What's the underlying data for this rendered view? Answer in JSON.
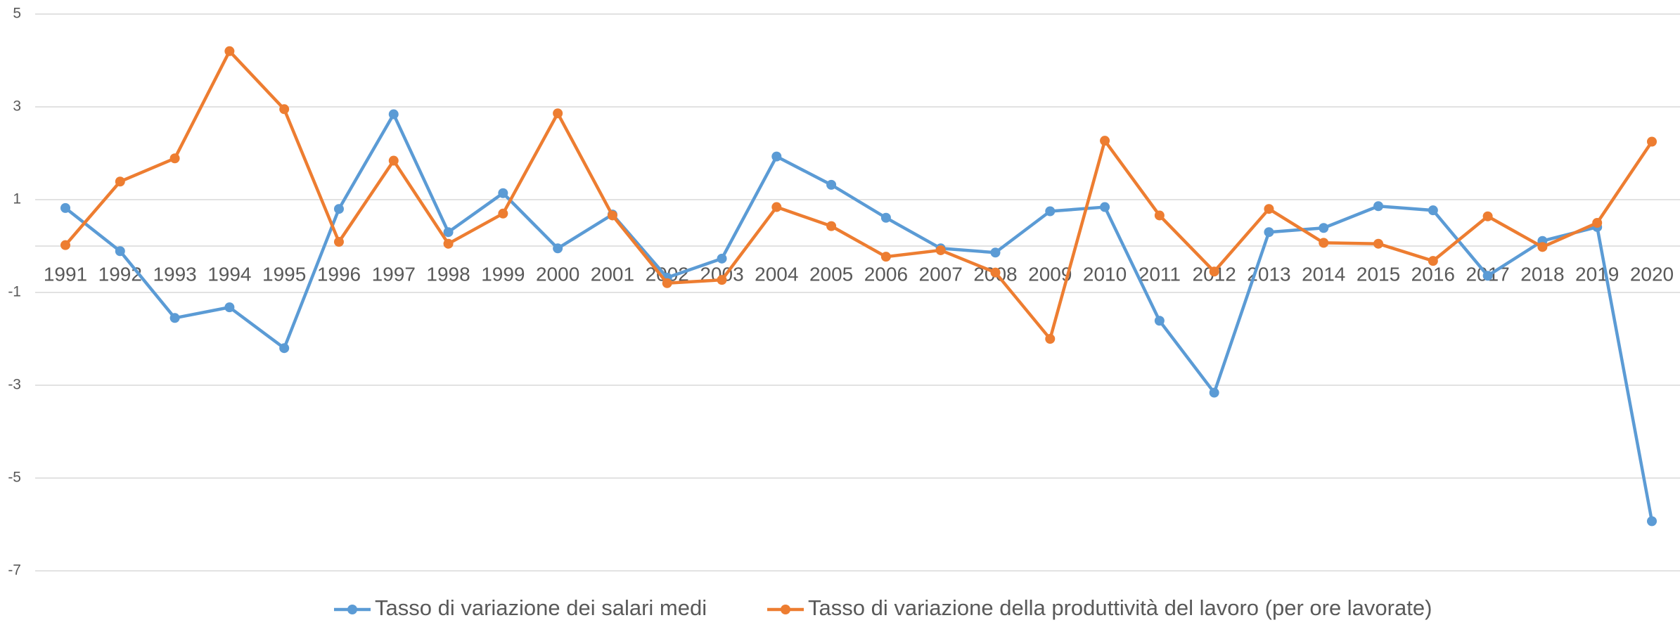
{
  "chart_data": {
    "type": "line",
    "categories": [
      "1991",
      "1992",
      "1993",
      "1994",
      "1995",
      "1996",
      "1997",
      "1998",
      "1999",
      "2000",
      "2001",
      "2002",
      "2003",
      "2004",
      "2005",
      "2006",
      "2007",
      "2008",
      "2009",
      "2010",
      "2011",
      "2012",
      "2013",
      "2014",
      "2015",
      "2016",
      "2017",
      "2018",
      "2019",
      "2020"
    ],
    "series": [
      {
        "name": "Tasso di variazione dei salari medi",
        "color": "#5b9bd5",
        "values": [
          0.82,
          -0.11,
          -1.55,
          -1.32,
          -2.2,
          0.8,
          2.84,
          0.3,
          1.14,
          -0.05,
          0.68,
          -0.68,
          -0.27,
          1.93,
          1.32,
          0.61,
          -0.05,
          -0.14,
          0.75,
          0.84,
          -1.61,
          -3.16,
          0.3,
          0.39,
          0.86,
          0.77,
          -0.64,
          0.11,
          0.41,
          -5.93
        ]
      },
      {
        "name": "Tasso di variazione della produttività del lavoro (per ore lavorate)",
        "color": "#ed7d31",
        "values": [
          0.02,
          1.39,
          1.89,
          4.2,
          2.95,
          0.09,
          1.84,
          0.05,
          0.7,
          2.86,
          0.66,
          -0.8,
          -0.73,
          0.84,
          0.43,
          -0.23,
          -0.09,
          -0.57,
          -2.0,
          2.27,
          0.66,
          -0.55,
          0.8,
          0.07,
          0.05,
          -0.32,
          0.64,
          -0.02,
          0.5,
          2.25
        ]
      }
    ],
    "ylim": [
      -7,
      5
    ],
    "yticks": [
      -7,
      -5,
      -3,
      -1,
      1,
      3,
      5
    ],
    "grid": true,
    "legend": "bottom"
  }
}
